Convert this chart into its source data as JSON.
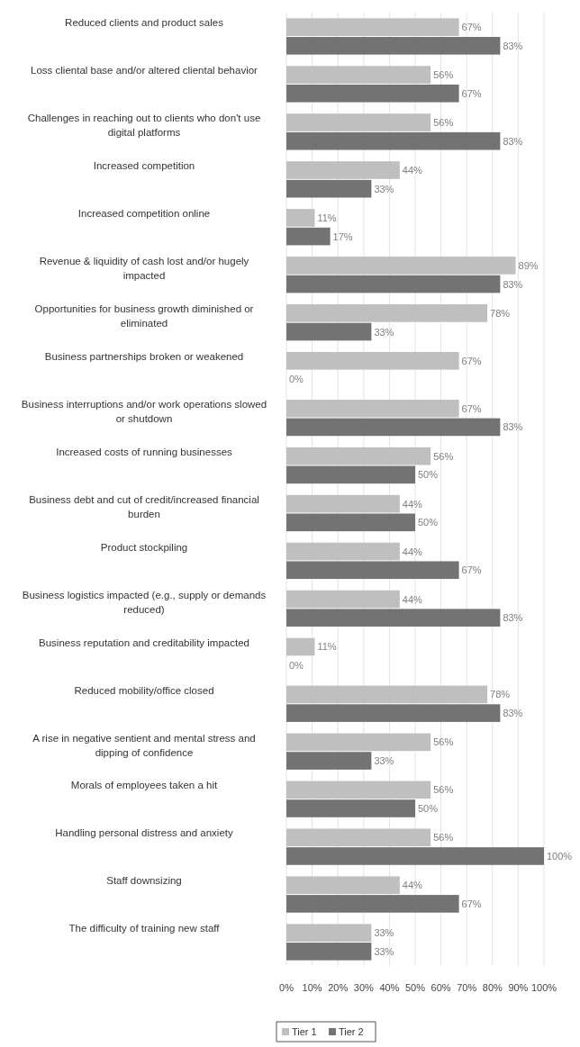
{
  "chart_data": {
    "type": "bar",
    "orientation": "horizontal",
    "categories": [
      "Reduced clients and product sales",
      "Loss cliental base and/or altered cliental behavior",
      "Challenges in reaching out to clients who don't use digital platforms",
      "Increased competition",
      "Increased competition online",
      "Revenue & liquidity of cash lost and/or hugely impacted",
      "Opportunities for business growth diminished or eliminated",
      "Business partnerships broken or weakened",
      "Business interruptions  and/or work operations slowed or shutdown",
      "Increased costs of running businesses",
      "Business debt and cut of credit/increased financial burden",
      "Product stockpiling",
      "Business logistics impacted (e.g., supply or demands reduced)",
      "Business reputation and creditability impacted",
      "Reduced mobility/office closed",
      "A rise in negative sentient and mental stress and dipping of confidence",
      "Morals of employees taken a hit",
      "Handling personal distress and anxiety",
      "Staff downsizing",
      "The difficulty of training new staff"
    ],
    "series": [
      {
        "name": "Tier 1",
        "color": "#bfbfbf",
        "values": [
          67,
          56,
          56,
          44,
          11,
          89,
          78,
          67,
          67,
          56,
          44,
          44,
          44,
          11,
          78,
          56,
          56,
          56,
          44,
          33
        ],
        "value_labels": [
          "67%",
          "56%",
          "56%",
          "44%",
          "11%",
          "89%",
          "78%",
          "67%",
          "67%",
          "56%",
          "44%",
          "44%",
          "44%",
          "11%",
          "78%",
          "56%",
          "56%",
          "56%",
          "44%",
          "33%"
        ]
      },
      {
        "name": "Tier 2",
        "color": "#737373",
        "values": [
          83,
          67,
          83,
          33,
          17,
          83,
          33,
          0,
          83,
          50,
          50,
          67,
          83,
          0,
          83,
          33,
          50,
          100,
          67,
          33
        ],
        "value_labels": [
          "83%",
          "67%",
          "83%",
          "33%",
          "17%",
          "83%",
          "33%",
          "0%",
          "83%",
          "50%",
          "50%",
          "67%",
          "83%",
          "0%",
          "83%",
          "33%",
          "50%",
          "100%",
          "67%",
          "33%"
        ]
      }
    ],
    "xlim": [
      0,
      100
    ],
    "xticks": [
      {
        "value": 0,
        "label": "0%"
      },
      {
        "value": 10,
        "label": "10%"
      },
      {
        "value": 20,
        "label": "20%"
      },
      {
        "value": 30,
        "label": "30%"
      },
      {
        "value": 40,
        "label": "40%"
      },
      {
        "value": 50,
        "label": "50%"
      },
      {
        "value": 60,
        "label": "60%"
      },
      {
        "value": 70,
        "label": "70%"
      },
      {
        "value": 80,
        "label": "80%"
      },
      {
        "value": 90,
        "label": "90%"
      },
      {
        "value": 100,
        "label": "100%"
      }
    ],
    "grid": "x",
    "legend": "bottom"
  }
}
